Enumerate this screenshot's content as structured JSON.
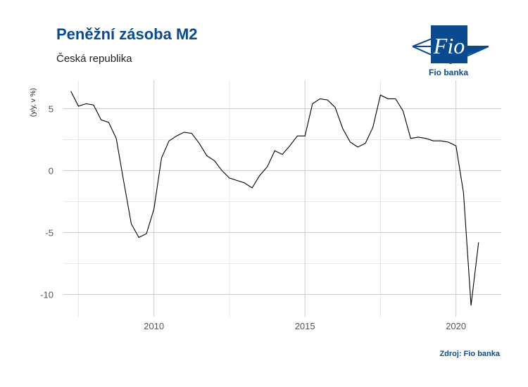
{
  "header": {
    "title": "Peněžní zásoba M2",
    "subtitle": "Česká republika",
    "logo_word": "Fio",
    "logo_caption": "Fio banka",
    "source": "Zdroj: Fio banka"
  },
  "colors": {
    "brand": "#0a4a8f",
    "line": "#000000",
    "grid": "#cccccc"
  },
  "chart_data": {
    "type": "line",
    "title": "Peněžní zásoba M2",
    "subtitle": "Česká republika",
    "xlabel": "",
    "ylabel": "(y/y, v %)",
    "xlim": [
      2007.0,
      2021.5
    ],
    "ylim": [
      -11.8,
      7.3
    ],
    "x_ticks": [
      2010,
      2015,
      2020
    ],
    "y_ticks": [
      5,
      0,
      -5,
      -10
    ],
    "grid": true,
    "legend": "none",
    "series": [
      {
        "x": [
          2007.25,
          2007.5,
          2007.75,
          2008.0,
          2008.25,
          2008.5,
          2008.75,
          2009.0,
          2009.25,
          2009.5,
          2009.75,
          2010.0,
          2010.25,
          2010.5,
          2010.75,
          2011.0,
          2011.25,
          2011.5,
          2011.75,
          2012.0,
          2012.25,
          2012.5,
          2012.75,
          2013.0,
          2013.25,
          2013.5,
          2013.75,
          2014.0,
          2014.25,
          2014.5,
          2014.75,
          2015.0,
          2015.25,
          2015.5,
          2015.75,
          2016.0,
          2016.25,
          2016.5,
          2016.75,
          2017.0,
          2017.25,
          2017.5,
          2017.75,
          2018.0,
          2018.25,
          2018.5,
          2018.75,
          2019.0,
          2019.25,
          2019.5,
          2019.75,
          2020.0,
          2020.25,
          2020.5,
          2020.75
        ],
        "values": [
          6.4,
          5.2,
          5.4,
          5.3,
          4.1,
          3.9,
          2.6,
          -0.9,
          -4.3,
          -5.4,
          -5.1,
          -3.1,
          1.0,
          2.4,
          2.8,
          3.1,
          3.0,
          2.2,
          1.2,
          0.8,
          0.0,
          -0.6,
          -0.8,
          -1.0,
          -1.4,
          -0.4,
          0.3,
          1.6,
          1.3,
          2.0,
          2.8,
          2.8,
          5.4,
          5.8,
          5.7,
          5.1,
          3.4,
          2.3,
          1.9,
          2.2,
          3.5,
          6.1,
          5.8,
          5.8,
          4.8,
          2.6,
          2.7,
          2.6,
          2.4,
          2.4,
          2.3,
          2.0,
          -1.8,
          -10.9,
          -5.8
        ]
      }
    ]
  }
}
